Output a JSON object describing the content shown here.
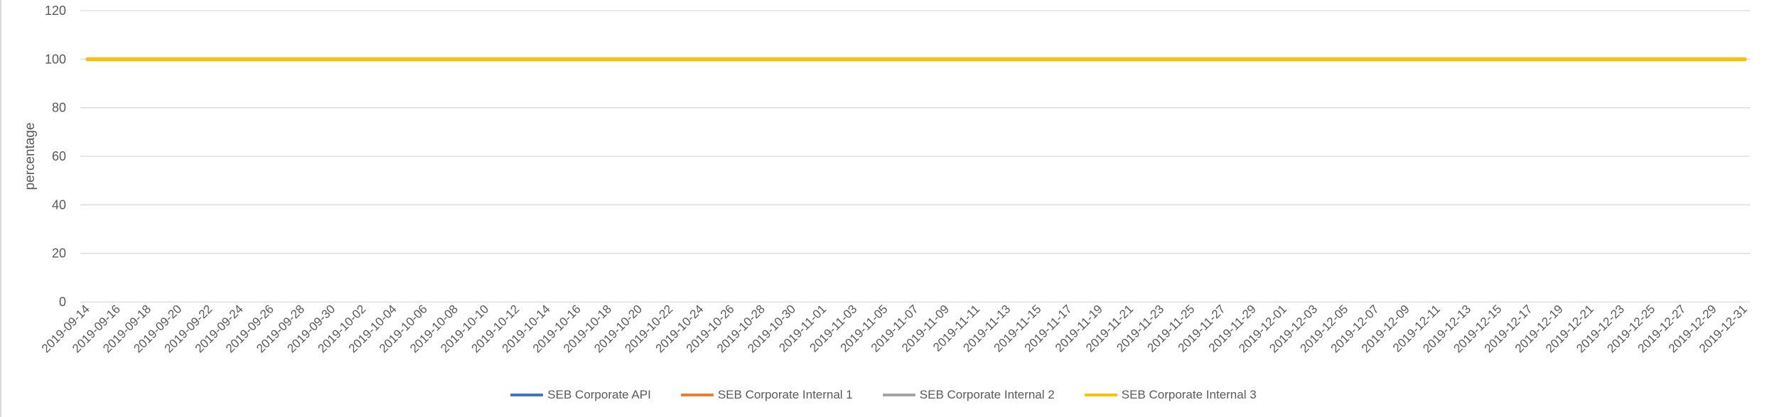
{
  "chart_data": {
    "type": "line",
    "title": "",
    "xlabel": "",
    "ylabel": "percentage",
    "ylim": [
      0,
      120
    ],
    "yticks": [
      0,
      20,
      40,
      60,
      80,
      100,
      120
    ],
    "grid": true,
    "legend_position": "bottom",
    "x": [
      "2019-09-14",
      "2019-09-16",
      "2019-09-18",
      "2019-09-20",
      "2019-09-22",
      "2019-09-24",
      "2019-09-26",
      "2019-09-28",
      "2019-09-30",
      "2019-10-02",
      "2019-10-04",
      "2019-10-06",
      "2019-10-08",
      "2019-10-10",
      "2019-10-12",
      "2019-10-14",
      "2019-10-16",
      "2019-10-18",
      "2019-10-20",
      "2019-10-22",
      "2019-10-24",
      "2019-10-26",
      "2019-10-28",
      "2019-10-30",
      "2019-11-01",
      "2019-11-03",
      "2019-11-05",
      "2019-11-07",
      "2019-11-09",
      "2019-11-11",
      "2019-11-13",
      "2019-11-15",
      "2019-11-17",
      "2019-11-19",
      "2019-11-21",
      "2019-11-23",
      "2019-11-25",
      "2019-11-27",
      "2019-11-29",
      "2019-12-01",
      "2019-12-03",
      "2019-12-05",
      "2019-12-07",
      "2019-12-09",
      "2019-12-11",
      "2019-12-13",
      "2019-12-15",
      "2019-12-17",
      "2019-12-19",
      "2019-12-21",
      "2019-12-23",
      "2019-12-25",
      "2019-12-27",
      "2019-12-29",
      "2019-12-31"
    ],
    "series": [
      {
        "name": "SEB Corporate API",
        "color": "#4472c4",
        "values": [
          100,
          100,
          100,
          100,
          100,
          100,
          100,
          100,
          100,
          100,
          100,
          100,
          100,
          100,
          100,
          100,
          100,
          100,
          100,
          100,
          100,
          100,
          100,
          100,
          100,
          100,
          100,
          100,
          100,
          100,
          100,
          100,
          100,
          100,
          100,
          100,
          100,
          100,
          100,
          100,
          100,
          100,
          100,
          100,
          100,
          100,
          100,
          100,
          100,
          100,
          100,
          100,
          100,
          100,
          100
        ]
      },
      {
        "name": "SEB Corporate Internal 1",
        "color": "#ed7d31",
        "values": [
          100,
          100,
          100,
          100,
          100,
          100,
          100,
          100,
          100,
          100,
          100,
          100,
          100,
          100,
          100,
          100,
          100,
          100,
          100,
          100,
          100,
          100,
          100,
          100,
          100,
          100,
          100,
          100,
          100,
          100,
          100,
          100,
          100,
          100,
          100,
          100,
          100,
          100,
          100,
          100,
          100,
          100,
          100,
          100,
          100,
          100,
          100,
          100,
          100,
          100,
          100,
          100,
          100,
          100,
          100
        ]
      },
      {
        "name": "SEB Corporate Internal 2",
        "color": "#a5a5a5",
        "values": [
          100,
          100,
          100,
          100,
          100,
          100,
          100,
          100,
          100,
          100,
          100,
          100,
          100,
          100,
          100,
          100,
          100,
          100,
          100,
          100,
          100,
          100,
          100,
          100,
          100,
          100,
          100,
          100,
          100,
          100,
          100,
          100,
          100,
          100,
          100,
          100,
          100,
          100,
          100,
          100,
          100,
          100,
          100,
          100,
          100,
          100,
          100,
          100,
          100,
          100,
          100,
          100,
          100,
          100,
          100
        ]
      },
      {
        "name": "SEB Corporate Internal 3",
        "color": "#ffc000",
        "values": [
          100,
          100,
          100,
          100,
          100,
          100,
          100,
          100,
          100,
          100,
          100,
          100,
          100,
          100,
          100,
          100,
          100,
          100,
          100,
          100,
          100,
          100,
          100,
          100,
          100,
          100,
          100,
          100,
          100,
          100,
          100,
          100,
          100,
          100,
          100,
          100,
          100,
          100,
          100,
          100,
          100,
          100,
          100,
          100,
          100,
          100,
          100,
          100,
          100,
          100,
          100,
          100,
          100,
          100,
          100
        ]
      }
    ]
  }
}
